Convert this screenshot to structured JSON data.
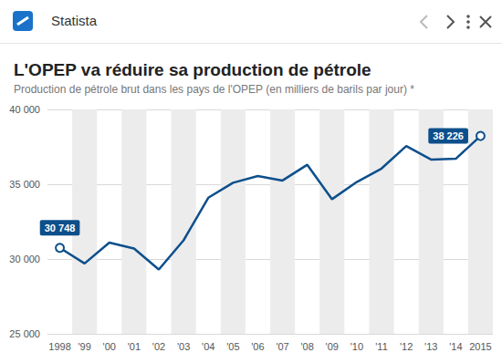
{
  "header": "Statista",
  "chart_data": {
    "type": "line",
    "title": "L'OPEP va réduire sa production de pétrole",
    "subtitle": "Production de pétrole brut dans les pays de l'OPEP (en milliers de barils par jour) *",
    "categories": [
      "1998",
      "'99",
      "'00",
      "'01",
      "'02",
      "'03",
      "'04",
      "'05",
      "'06",
      "'07",
      "'08",
      "'09",
      "'10",
      "'11",
      "'12",
      "'13",
      "'14",
      "2015"
    ],
    "values": [
      30748,
      29700,
      31100,
      30700,
      29300,
      31250,
      34100,
      35100,
      35550,
      35250,
      36300,
      34000,
      35150,
      36050,
      37550,
      36650,
      36700,
      38226
    ],
    "value_labels": [
      "30 748",
      null,
      null,
      null,
      null,
      null,
      null,
      null,
      null,
      null,
      null,
      null,
      null,
      null,
      null,
      null,
      null,
      "38 226"
    ],
    "color": "#0d4f8b",
    "marker": "circle",
    "ylim": [
      25000,
      40000
    ],
    "yticks": [
      {
        "value": 25000,
        "label": "25 000"
      },
      {
        "value": 30000,
        "label": "30 000"
      },
      {
        "value": 35000,
        "label": "35 000"
      },
      {
        "value": 40000,
        "label": "40 000"
      }
    ],
    "grid": true
  }
}
